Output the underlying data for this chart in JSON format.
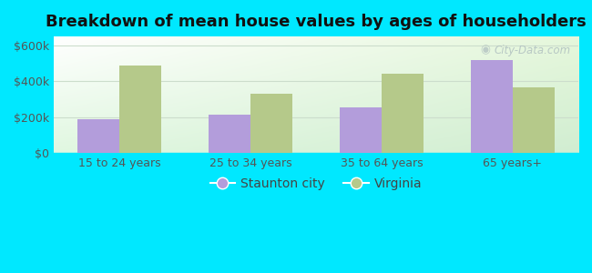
{
  "title": "Breakdown of mean house values by ages of householders",
  "categories": [
    "15 to 24 years",
    "25 to 34 years",
    "35 to 64 years",
    "65 years+"
  ],
  "staunton_values": [
    190000,
    215000,
    255000,
    520000
  ],
  "virginia_values": [
    490000,
    330000,
    440000,
    365000
  ],
  "staunton_color": "#b39ddb",
  "virginia_color": "#b5c98a",
  "background_color": "#00e8ff",
  "yticks": [
    0,
    200000,
    400000,
    600000
  ],
  "ytick_labels": [
    "$0",
    "$200k",
    "$400k",
    "$600k"
  ],
  "ylim": [
    0,
    650000
  ],
  "legend_staunton": "Staunton city",
  "legend_virginia": "Virginia",
  "title_fontsize": 13,
  "bar_width": 0.32,
  "gridcolor": "#ccddcc",
  "watermark_text": "City-Data.com",
  "tick_fontsize": 9,
  "legend_fontsize": 10
}
